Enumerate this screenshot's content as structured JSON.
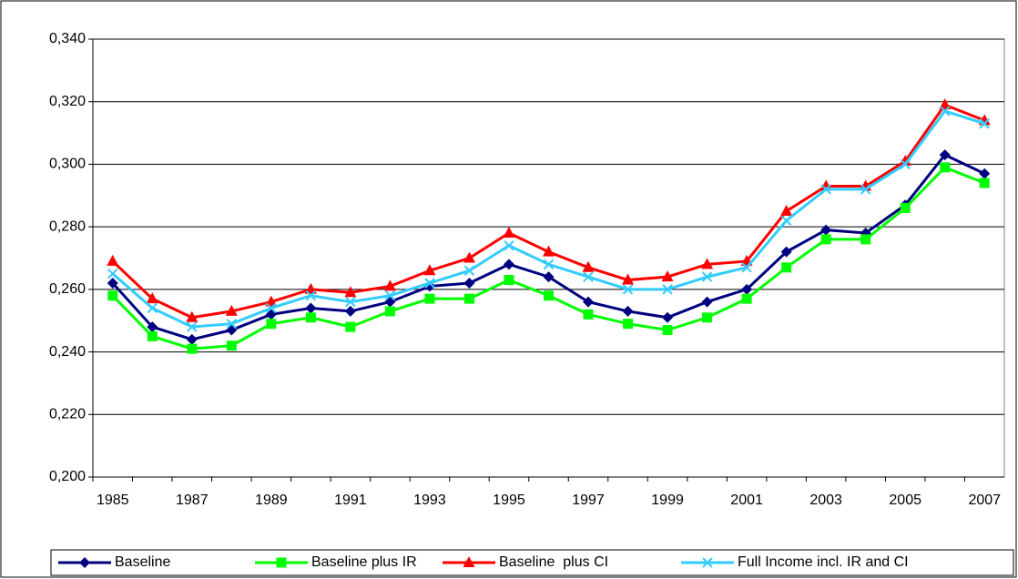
{
  "chart_data": {
    "type": "line",
    "categories": [
      "1985",
      null,
      "1987",
      null,
      "1989",
      null,
      "1991",
      null,
      "1993",
      null,
      "1995",
      null,
      "1997",
      null,
      "1999",
      null,
      "2001",
      null,
      "2003",
      null,
      "2005",
      null,
      "2007"
    ],
    "ylim": [
      0.2,
      0.34
    ],
    "yticks": [
      {
        "value": 0.2,
        "label": "0,200"
      },
      {
        "value": 0.22,
        "label": "0,220"
      },
      {
        "value": 0.24,
        "label": "0,240"
      },
      {
        "value": 0.26,
        "label": "0,260"
      },
      {
        "value": 0.28,
        "label": "0,280"
      },
      {
        "value": 0.3,
        "label": "0,300"
      },
      {
        "value": 0.32,
        "label": "0,320"
      },
      {
        "value": 0.34,
        "label": "0,340"
      }
    ],
    "grid": true,
    "legend": "bottom",
    "series": [
      {
        "name": "Baseline",
        "color": "#000080",
        "marker": "diamond",
        "values": [
          0.262,
          0.248,
          0.244,
          0.247,
          0.252,
          0.254,
          0.253,
          0.256,
          0.261,
          0.262,
          0.268,
          0.264,
          0.256,
          0.253,
          0.251,
          0.256,
          0.26,
          0.272,
          0.279,
          0.278,
          0.287,
          0.303,
          0.297
        ]
      },
      {
        "name": "Baseline plus IR",
        "color": "#00ff00",
        "marker": "square",
        "values": [
          0.258,
          0.245,
          0.241,
          0.242,
          0.249,
          0.251,
          0.248,
          0.253,
          0.257,
          0.257,
          0.263,
          0.258,
          0.252,
          0.249,
          0.247,
          0.251,
          0.257,
          0.267,
          0.276,
          0.276,
          0.286,
          0.299,
          0.294
        ]
      },
      {
        "name": "Baseline  plus CI",
        "color": "#ff0000",
        "marker": "triangle",
        "values": [
          0.269,
          0.257,
          0.251,
          0.253,
          0.256,
          0.26,
          0.259,
          0.261,
          0.266,
          0.27,
          0.278,
          0.272,
          0.267,
          0.263,
          0.264,
          0.268,
          0.269,
          0.285,
          0.293,
          0.293,
          0.301,
          0.319,
          0.314
        ]
      },
      {
        "name": "Full Income incl. IR and CI",
        "color": "#33ccff",
        "marker": "x",
        "values": [
          0.265,
          0.254,
          0.248,
          0.249,
          0.254,
          0.258,
          0.256,
          0.258,
          0.262,
          0.266,
          0.274,
          0.268,
          0.264,
          0.26,
          0.26,
          0.264,
          0.267,
          0.282,
          0.292,
          0.292,
          0.3,
          0.317,
          0.313
        ]
      }
    ]
  }
}
